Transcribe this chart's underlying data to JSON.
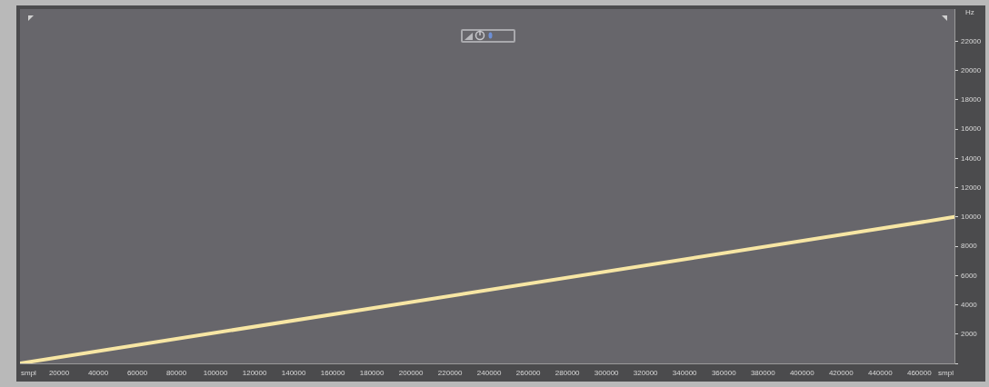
{
  "chart_data": {
    "type": "line",
    "xlabel": "smpl",
    "ylabel": "Hz",
    "x": [
      0,
      478000
    ],
    "series": [
      {
        "color": "#f7e6a4",
        "values": [
          0,
          10000
        ]
      }
    ],
    "xlim": [
      0,
      478000
    ],
    "ylim": [
      0,
      24200
    ],
    "xticks": [
      20000,
      40000,
      60000,
      80000,
      100000,
      120000,
      140000,
      160000,
      180000,
      200000,
      220000,
      240000,
      260000,
      280000,
      300000,
      320000,
      340000,
      360000,
      380000,
      400000,
      420000,
      440000,
      460000
    ],
    "yticks": [
      {
        "value": 0,
        "label": null
      },
      2000,
      4000,
      6000,
      8000,
      10000,
      12000,
      14000,
      16000,
      18000,
      20000,
      22000
    ],
    "grid": false,
    "legend": false,
    "marker": "none",
    "line_style": "solid"
  }
}
